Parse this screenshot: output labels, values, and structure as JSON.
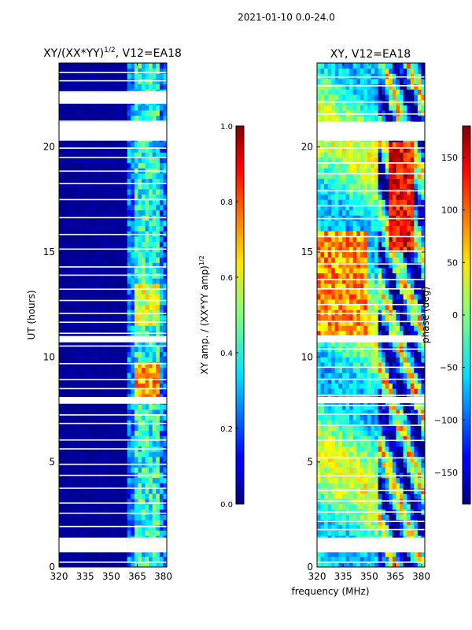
{
  "suptitle": "2021-01-10 0.0-24.0",
  "x_axis_label": "frequency (MHz)",
  "chart_data": [
    {
      "type": "heatmap",
      "title_prefix": "XY/(XX*YY)",
      "title_exp": "1/2",
      "title_suffix": ", V12=EA18",
      "ylabel": "UT (hours)",
      "xlim": [
        320,
        382
      ],
      "ylim": [
        0,
        24
      ],
      "xticks": [
        320,
        335,
        350,
        365,
        380
      ],
      "yticks": [
        0,
        5,
        10,
        15,
        20
      ],
      "colormap": "jet",
      "active_band": [
        359,
        381
      ],
      "flagged_ut_gaps": [
        [
          0.7,
          1.4
        ],
        [
          20.3,
          21.2
        ],
        [
          7.8,
          8.1
        ],
        [
          10.7,
          11.0
        ],
        [
          22.1,
          22.6
        ]
      ],
      "bright_region": {
        "ut": [
          8.1,
          9.8
        ],
        "value": 0.85
      },
      "colorbar": {
        "label_prefix": "XY amp. / (XX*YY amp)",
        "label_exp": "1/2",
        "range": [
          0.0,
          1.0
        ],
        "ticks": [
          "0.0",
          "0.2",
          "0.4",
          "0.6",
          "0.8",
          "1.0"
        ]
      }
    },
    {
      "type": "heatmap",
      "title": "XY, V12=EA18",
      "xlim": [
        320,
        382
      ],
      "ylim": [
        0,
        24
      ],
      "xticks": [
        320,
        335,
        350,
        365,
        380
      ],
      "yticks": [
        0,
        5,
        10,
        15,
        20
      ],
      "colormap": "jet",
      "flagged_ut_gaps": [
        [
          0.7,
          1.4
        ],
        [
          20.3,
          21.2
        ],
        [
          7.8,
          8.1
        ],
        [
          10.7,
          11.0
        ]
      ],
      "colorbar": {
        "label": "phase (deg)",
        "range": [
          -180,
          180
        ],
        "ticks": [
          "150",
          "100",
          "50",
          "0",
          "−50",
          "−100",
          "−150"
        ],
        "tick_values": [
          150,
          100,
          50,
          0,
          -50,
          -100,
          -150
        ]
      }
    }
  ]
}
